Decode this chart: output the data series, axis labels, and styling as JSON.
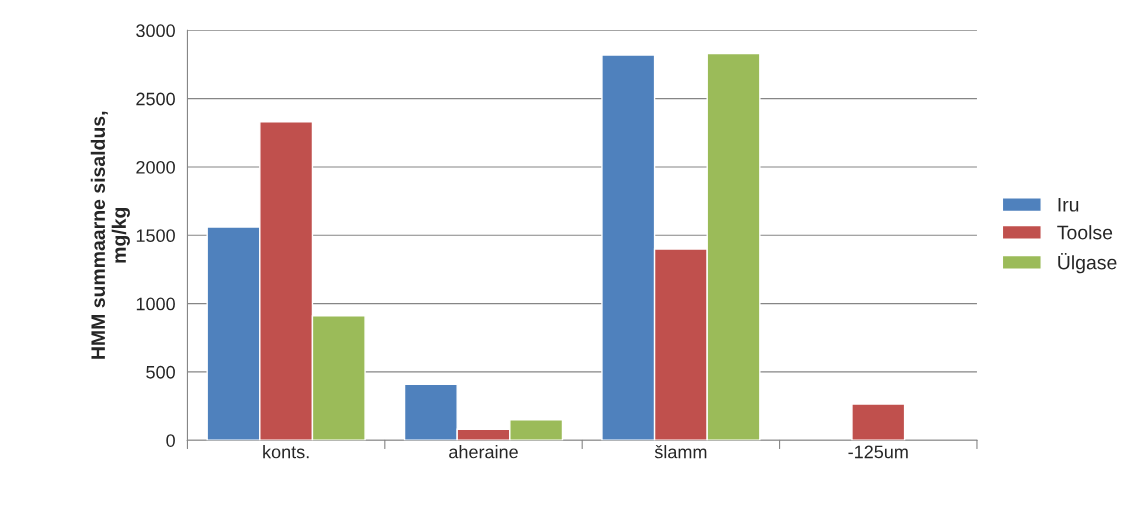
{
  "chart_data": {
    "type": "bar",
    "ylabel": "HMM summaarne sisaldus,\nmg/kg",
    "categories": [
      "konts.",
      "aheraine",
      "šlamm",
      "-125um"
    ],
    "series": [
      {
        "name": "Iru",
        "color": "#4f81bd",
        "values": [
          1560,
          410,
          2820,
          null
        ]
      },
      {
        "name": "Toolse",
        "color": "#c0504d",
        "values": [
          2330,
          80,
          1400,
          265
        ]
      },
      {
        "name": "Ülgase",
        "color": "#9bbb59",
        "values": [
          910,
          150,
          2830,
          null
        ]
      }
    ],
    "ylim": [
      0,
      3000
    ],
    "yticks": [
      0,
      500,
      1000,
      1500,
      2000,
      2500,
      3000
    ],
    "grid": "y",
    "legend": "right"
  }
}
